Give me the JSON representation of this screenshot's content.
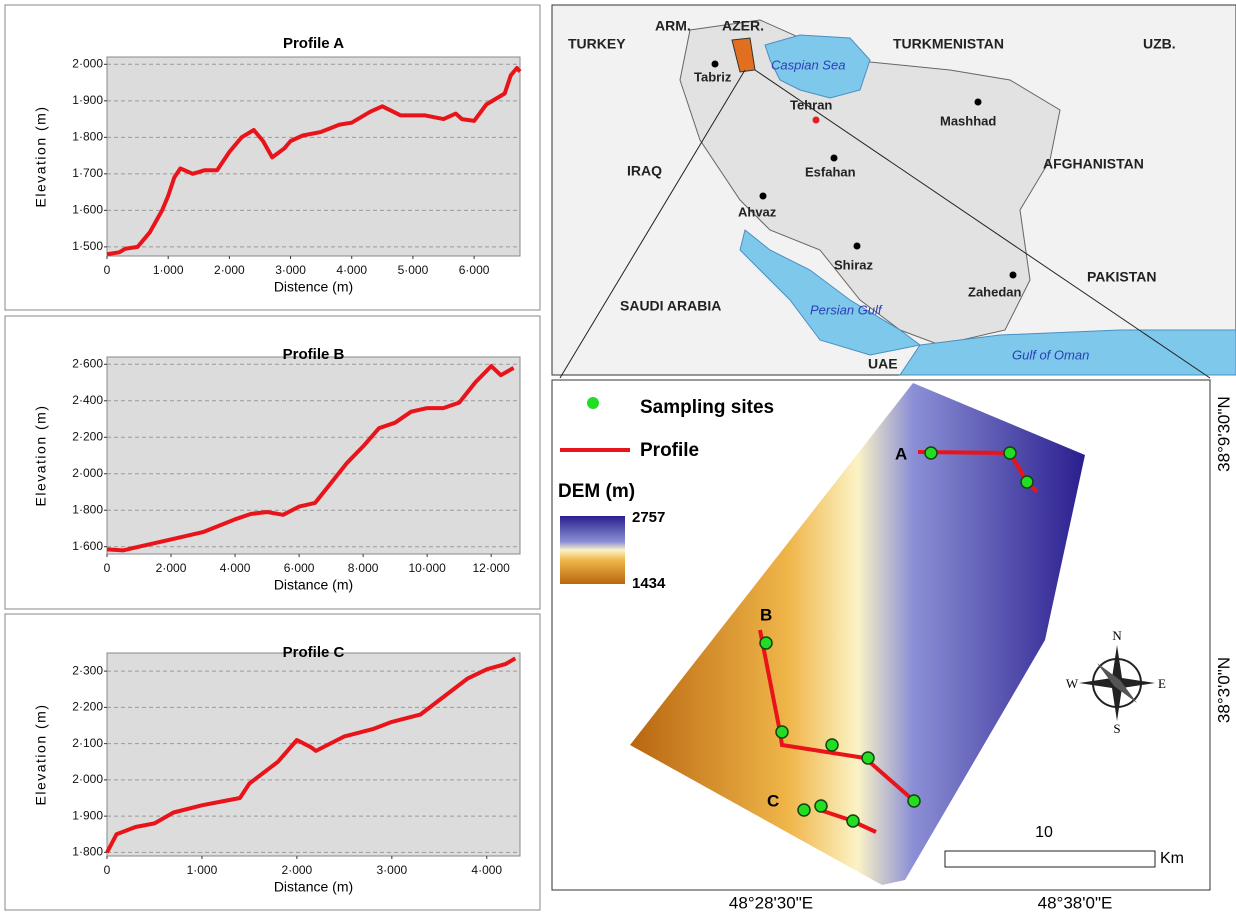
{
  "chart_data": [
    {
      "type": "line",
      "title": "Profile A",
      "x_label": "Distence (m)",
      "y_label": "Elevation (m)",
      "color": "#e8141a",
      "grid": true,
      "xlim": [
        0,
        6750
      ],
      "ylim": [
        1475,
        2020
      ],
      "xticks": [
        0,
        {
          "value": 1000,
          "label": "1·000"
        },
        {
          "value": 2000,
          "label": "2·000"
        },
        {
          "value": 3000,
          "label": "3·000"
        },
        {
          "value": 4000,
          "label": "4·000"
        },
        {
          "value": 5000,
          "label": "5·000"
        },
        {
          "value": 6000,
          "label": "6·000"
        }
      ],
      "yticks": [
        {
          "value": 1500,
          "label": "1·500"
        },
        {
          "value": 1600,
          "label": "1·600"
        },
        {
          "value": 1700,
          "label": "1·700"
        },
        {
          "value": 1800,
          "label": "1·800"
        },
        {
          "value": 1900,
          "label": "1·900"
        },
        {
          "value": 2000,
          "label": "2·000"
        }
      ],
      "x": [
        0,
        200,
        300,
        500,
        700,
        900,
        1000,
        1100,
        1200,
        1400,
        1600,
        1800,
        2000,
        2200,
        2400,
        2550,
        2700,
        2900,
        3000,
        3200,
        3500,
        3800,
        4000,
        4300,
        4500,
        4800,
        5200,
        5500,
        5700,
        5800,
        6000,
        6200,
        6500,
        6600,
        6700,
        6750
      ],
      "values": [
        1480,
        1485,
        1495,
        1500,
        1540,
        1600,
        1640,
        1690,
        1715,
        1700,
        1710,
        1710,
        1760,
        1800,
        1820,
        1790,
        1745,
        1770,
        1790,
        1805,
        1815,
        1835,
        1840,
        1870,
        1885,
        1860,
        1860,
        1850,
        1865,
        1850,
        1845,
        1890,
        1920,
        1970,
        1990,
        1980
      ]
    },
    {
      "type": "line",
      "title": "Profile B",
      "x_label": "Distance (m)",
      "y_label": "Elevation (m)",
      "color": "#e8141a",
      "grid": true,
      "xlim": [
        0,
        12900
      ],
      "ylim": [
        1560,
        2640
      ],
      "xticks": [
        0,
        {
          "value": 2000,
          "label": "2·000"
        },
        {
          "value": 4000,
          "label": "4·000"
        },
        {
          "value": 6000,
          "label": "6·000"
        },
        {
          "value": 8000,
          "label": "8·000"
        },
        {
          "value": 10000,
          "label": "10·000"
        },
        {
          "value": 12000,
          "label": "12·000"
        }
      ],
      "yticks": [
        {
          "value": 1600,
          "label": "1·600"
        },
        {
          "value": 1800,
          "label": "1·800"
        },
        {
          "value": 2000,
          "label": "2·000"
        },
        {
          "value": 2200,
          "label": "2·200"
        },
        {
          "value": 2400,
          "label": "2·400"
        },
        {
          "value": 2600,
          "label": "2·600"
        }
      ],
      "x": [
        0,
        500,
        1000,
        2000,
        3000,
        4000,
        4500,
        5000,
        5500,
        6000,
        6500,
        7000,
        7500,
        8000,
        8500,
        9000,
        9500,
        10000,
        10500,
        11000,
        11500,
        12000,
        12300,
        12700
      ],
      "values": [
        1585,
        1580,
        1600,
        1640,
        1680,
        1750,
        1780,
        1790,
        1775,
        1820,
        1840,
        1950,
        2060,
        2150,
        2250,
        2280,
        2340,
        2360,
        2360,
        2390,
        2500,
        2590,
        2540,
        2580
      ]
    },
    {
      "type": "line",
      "title": "Profile C",
      "x_label": "Distance (m)",
      "y_label": "Elevation (m)",
      "color": "#e8141a",
      "grid": true,
      "xlim": [
        0,
        4350
      ],
      "ylim": [
        1790,
        2350
      ],
      "xticks": [
        0,
        {
          "value": 1000,
          "label": "1·000"
        },
        {
          "value": 2000,
          "label": "2·000"
        },
        {
          "value": 3000,
          "label": "3·000"
        },
        {
          "value": 4000,
          "label": "4·000"
        }
      ],
      "yticks": [
        {
          "value": 1800,
          "label": "1·800"
        },
        {
          "value": 1900,
          "label": "1·900"
        },
        {
          "value": 2000,
          "label": "2·000"
        },
        {
          "value": 2100,
          "label": "2·100"
        },
        {
          "value": 2200,
          "label": "2·200"
        },
        {
          "value": 2300,
          "label": "2·300"
        }
      ],
      "x": [
        0,
        100,
        300,
        500,
        700,
        1000,
        1200,
        1400,
        1500,
        1800,
        2000,
        2150,
        2200,
        2500,
        2800,
        3000,
        3300,
        3500,
        3800,
        4000,
        4200,
        4300
      ],
      "values": [
        1800,
        1850,
        1870,
        1880,
        1910,
        1930,
        1940,
        1950,
        1990,
        2050,
        2110,
        2090,
        2080,
        2120,
        2140,
        2160,
        2180,
        2220,
        2280,
        2305,
        2320,
        2335
      ]
    }
  ],
  "map": {
    "countries": [
      "ARM.",
      "AZER.",
      "TURKEY",
      "TURKMENISTAN",
      "UZB.",
      "IRAQ",
      "AFGHANISTAN",
      "PAKISTAN",
      "SAUDI ARABIA",
      "UAE"
    ],
    "cities": [
      "Tabriz",
      "Tehran",
      "Mashhad",
      "Esfahan",
      "Ahvaz",
      "Shiraz",
      "Zahedan"
    ],
    "waters": [
      "Caspian Sea",
      "Persian Gulf",
      "Gulf of Oman"
    ],
    "legend": {
      "sites": "Sampling sites",
      "profile": "Profile",
      "dem_title": "DEM (m)",
      "dem_max": "2757",
      "dem_min": "1434"
    },
    "profile_labels": [
      "A",
      "B",
      "C"
    ],
    "compass": [
      "N",
      "S",
      "E",
      "W"
    ],
    "scale": {
      "value": "10",
      "unit": "Km"
    },
    "coords": {
      "lon1": "48°28'30\"E",
      "lon2": "48°38'0\"E",
      "lat1": "38°9'30\"N",
      "lat2": "38°3'0\"N"
    }
  }
}
